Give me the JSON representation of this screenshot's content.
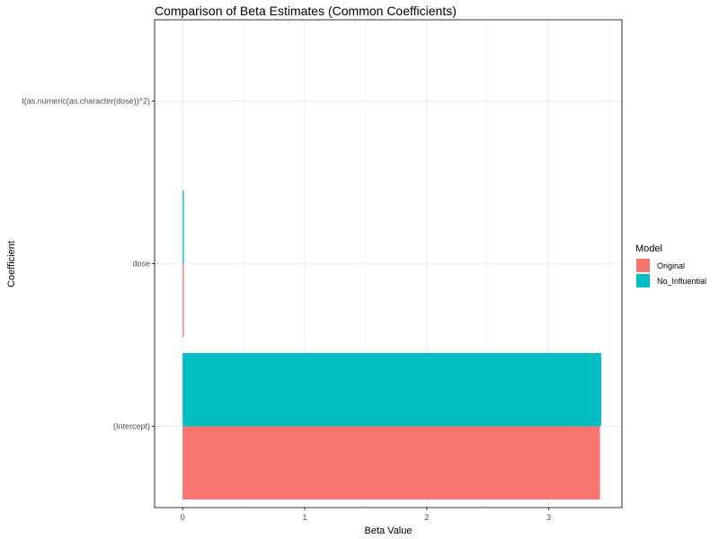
{
  "chart_data": {
    "type": "bar",
    "orientation": "horizontal",
    "title": "Comparison of Beta Estimates (Common Coefficients)",
    "xlabel": "Beta Value",
    "ylabel": "Coefficient",
    "categories": [
      "(Intercept)",
      "dose",
      "I(as.numeric(as.character(dose))^2)"
    ],
    "series": [
      {
        "name": "Original",
        "color": "#F8766D",
        "values": [
          3.42,
          0.01,
          0.0
        ]
      },
      {
        "name": "No_Influential",
        "color": "#00BFC4",
        "values": [
          3.43,
          0.01,
          0.0
        ]
      }
    ],
    "xlim": [
      -0.23,
      3.6
    ],
    "xticks": [
      0,
      1,
      2,
      3
    ],
    "grid": true,
    "legend": {
      "title": "Model",
      "position": "right"
    }
  }
}
